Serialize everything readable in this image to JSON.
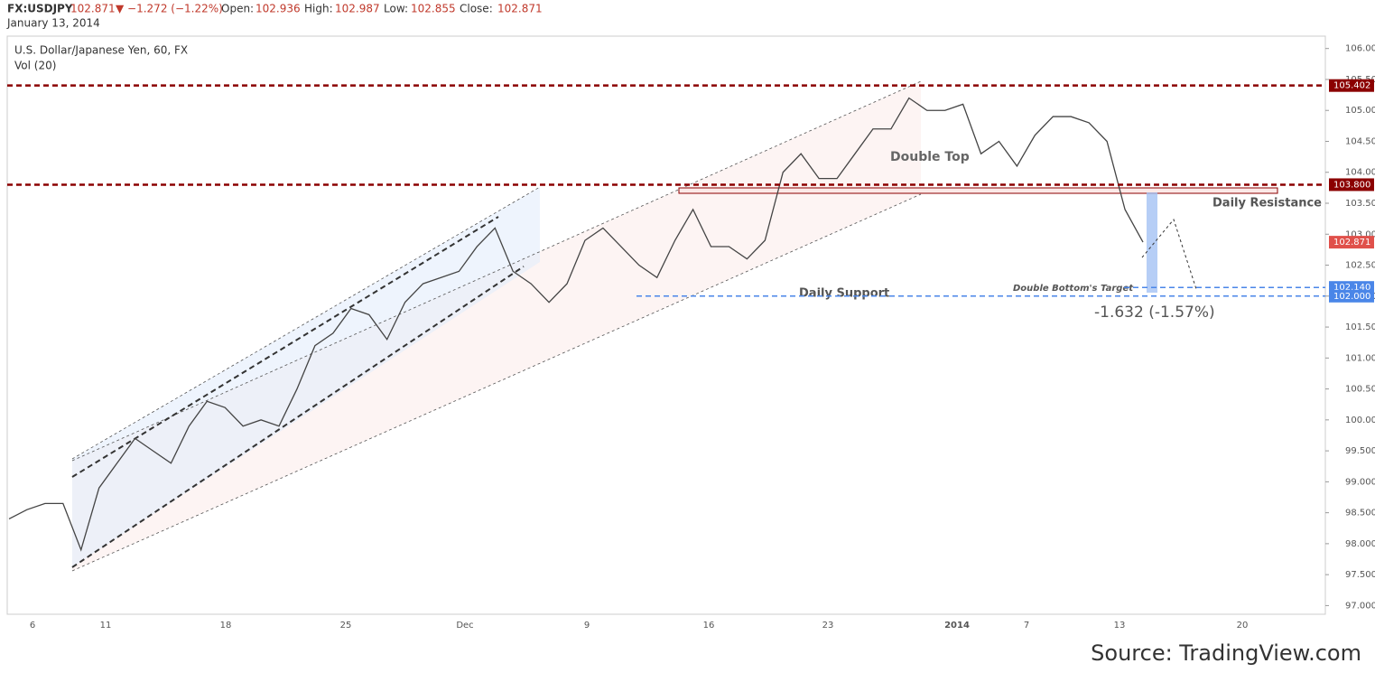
{
  "header": {
    "symbol": "FX:USDJPY",
    "last": "102.871",
    "change": "▼ −1.272 (−1.22%)",
    "open_label": "Open:",
    "open": "102.936",
    "high_label": "High:",
    "high": "102.987",
    "low_label": "Low:",
    "low": "102.855",
    "close_label": "Close:",
    "close": "102.871",
    "date": "January 13, 2014"
  },
  "chart_data": {
    "type": "line",
    "title": "U.S. Dollar/Japanese Yen, 60, FX",
    "subtitle": "Vol (20)",
    "series": [
      {
        "name": "USDJPY",
        "color": "#444444",
        "values": [
          98.4,
          98.55,
          98.65,
          98.65,
          97.9,
          98.9,
          99.3,
          99.7,
          99.5,
          99.3,
          99.9,
          100.3,
          100.2,
          99.9,
          100.0,
          99.9,
          100.5,
          101.2,
          101.4,
          101.8,
          101.7,
          101.3,
          101.9,
          102.2,
          102.3,
          102.4,
          102.8,
          103.1,
          102.4,
          102.2,
          101.9,
          102.2,
          102.9,
          103.1,
          102.8,
          102.5,
          102.3,
          102.9,
          103.4,
          102.8,
          102.8,
          102.6,
          102.9,
          104.0,
          104.3,
          103.9,
          103.9,
          104.3,
          104.7,
          104.7,
          105.2,
          105.0,
          105.0,
          105.1,
          104.3,
          104.5,
          104.1,
          104.6,
          104.9,
          104.9,
          104.8,
          104.5,
          103.4,
          102.871
        ]
      }
    ],
    "x_labels": [
      "6",
      "11",
      "18",
      "25",
      "Dec",
      "9",
      "16",
      "23",
      "2014",
      "7",
      "13",
      "20"
    ],
    "ylim": [
      96.86,
      106.2
    ],
    "yticks": [
      {
        "value": 97,
        "label": "97.000"
      },
      {
        "value": 97.5,
        "label": "97.500"
      },
      {
        "value": 98,
        "label": "98.000"
      },
      {
        "value": 98.5,
        "label": "98.500"
      },
      {
        "value": 99,
        "label": "99.000"
      },
      {
        "value": 99.5,
        "label": "99.500"
      },
      {
        "value": 100,
        "label": "100.000"
      },
      {
        "value": 100.5,
        "label": "100.500"
      },
      {
        "value": 101,
        "label": "101.000"
      },
      {
        "value": 101.5,
        "label": "101.500"
      },
      {
        "value": 102,
        "label": "102.000"
      },
      {
        "value": 102.5,
        "label": "102.500"
      },
      {
        "value": 103,
        "label": "103.000"
      },
      {
        "value": 103.5,
        "label": "103.500"
      },
      {
        "value": 104,
        "label": "104.000"
      },
      {
        "value": 104.5,
        "label": "104.500"
      },
      {
        "value": 105,
        "label": "105.000"
      },
      {
        "value": 105.5,
        "label": "105.500"
      },
      {
        "value": 106,
        "label": "106.000"
      }
    ],
    "levels": [
      {
        "value": 105.402,
        "label": "105.402",
        "color": "#8b0000"
      },
      {
        "value": 103.8,
        "label": "103.800",
        "color": "#8b0000"
      },
      {
        "value": 102.871,
        "label": "102.871",
        "color": "#e0504a"
      },
      {
        "value": 102.14,
        "label": "102.140",
        "color": "#4a86e8"
      },
      {
        "value": 102.0,
        "label": "102.000",
        "color": "#4a86e8"
      }
    ],
    "annotations": [
      "Double Top",
      "Daily Resistance",
      "Daily Support",
      "Double Bottom's Target",
      "-1.632 (-1.57%)"
    ],
    "source": "Source: TradingView.com"
  }
}
